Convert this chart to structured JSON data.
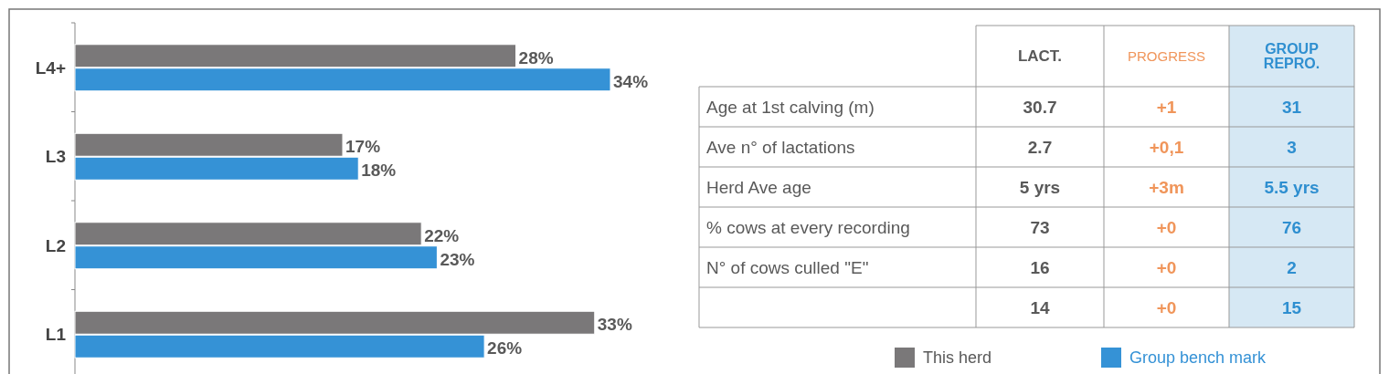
{
  "chart_data": [
    {
      "type": "bar",
      "orientation": "horizontal",
      "categories": [
        "L4+",
        "L3",
        "L2",
        "L1"
      ],
      "series": [
        {
          "name": "This herd",
          "color": "#7a7879",
          "values": [
            28,
            17,
            22,
            33
          ],
          "value_labels": [
            "28%",
            "17%",
            "22%",
            "33%"
          ]
        },
        {
          "name": "Group bench mark",
          "color": "#3592d6",
          "values": [
            34,
            18,
            23,
            26
          ],
          "value_labels": [
            "34%",
            "18%",
            "23%",
            "26%"
          ]
        }
      ],
      "tick_labels": "y",
      "legend": "bottom right"
    },
    {
      "type": "other",
      "categories": [
        null,
        "LACT.",
        "PROGRESS",
        "GROUP REPRO."
      ],
      "y_categories": [
        "Age at 1st calving (m)",
        "Ave n° of lactations",
        "Herd Ave age",
        "% cows at every recording",
        "N° of cows culled \"E\"",
        null
      ],
      "cell_labels": [
        [
          "30.7",
          "+1",
          "31"
        ],
        [
          "2.7",
          "+0,1",
          "3"
        ],
        [
          "5 yrs",
          "+3m",
          "5.5 yrs"
        ],
        [
          "73",
          "+0",
          "76"
        ],
        [
          "16",
          "+0",
          "2"
        ],
        [
          "14",
          "+0",
          "15"
        ]
      ]
    }
  ]
}
